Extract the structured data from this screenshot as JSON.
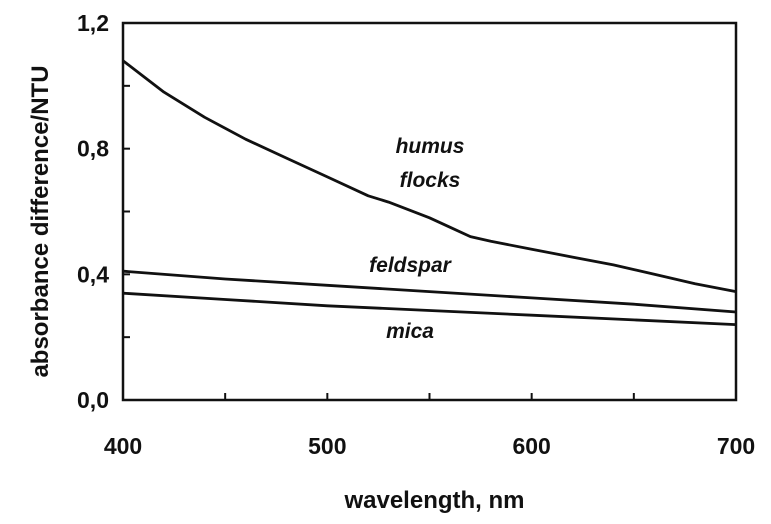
{
  "chart_data": {
    "type": "line",
    "xlabel": "wavelength, nm",
    "ylabel": "absorbance difference/NTU",
    "xlim": [
      400,
      700
    ],
    "ylim": [
      0.0,
      1.2
    ],
    "x_ticks": [
      400,
      500,
      600,
      700
    ],
    "x_tick_labels": [
      "400",
      "500",
      "600",
      "700"
    ],
    "y_ticks": [
      0.0,
      0.4,
      0.8,
      1.2
    ],
    "y_tick_labels": [
      "0,0",
      "0,4",
      "0,8",
      "1,2"
    ],
    "grid": false,
    "legend": "none",
    "series": [
      {
        "name": "humus flocks",
        "label_lines": [
          "humus",
          "flocks"
        ],
        "x": [
          400,
          410,
          420,
          440,
          460,
          480,
          500,
          520,
          530,
          550,
          560,
          570,
          580,
          600,
          620,
          640,
          660,
          680,
          700
        ],
        "y": [
          1.08,
          1.03,
          0.98,
          0.9,
          0.83,
          0.77,
          0.71,
          0.65,
          0.63,
          0.58,
          0.55,
          0.52,
          0.505,
          0.48,
          0.455,
          0.43,
          0.4,
          0.37,
          0.345
        ]
      },
      {
        "name": "feldspar",
        "label_lines": [
          "feldspar"
        ],
        "x": [
          400,
          450,
          500,
          550,
          600,
          650,
          700
        ],
        "y": [
          0.41,
          0.385,
          0.365,
          0.345,
          0.325,
          0.305,
          0.28
        ]
      },
      {
        "name": "mica",
        "label_lines": [
          "mica"
        ],
        "x": [
          400,
          450,
          500,
          550,
          600,
          650,
          700
        ],
        "y": [
          0.34,
          0.32,
          0.3,
          0.285,
          0.27,
          0.255,
          0.24
        ]
      }
    ]
  }
}
